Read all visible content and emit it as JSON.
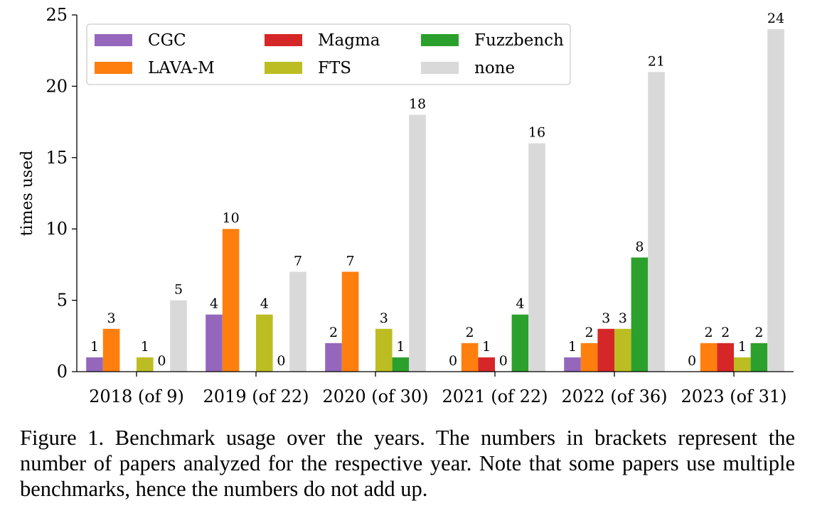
{
  "chart_data": {
    "type": "bar",
    "title": "",
    "xlabel": "",
    "ylabel": "times used",
    "ylim": [
      0,
      25
    ],
    "yticks": [
      0,
      5,
      10,
      15,
      20,
      25
    ],
    "grid": false,
    "legend_position": "top-left",
    "categories": [
      "2018 (of 9)",
      "2019 (of 22)",
      "2020 (of 30)",
      "2021 (of 22)",
      "2022 (of 36)",
      "2023 (of 31)"
    ],
    "series": [
      {
        "name": "CGC",
        "color": "#9467bd",
        "values": [
          1,
          4,
          2,
          0,
          1,
          0
        ]
      },
      {
        "name": "LAVA-M",
        "color": "#ff7f0e",
        "values": [
          3,
          10,
          7,
          2,
          2,
          2
        ]
      },
      {
        "name": "Magma",
        "color": "#d62728",
        "values": [
          null,
          null,
          null,
          1,
          3,
          2
        ]
      },
      {
        "name": "FTS",
        "color": "#bcbd22",
        "values": [
          1,
          4,
          3,
          0,
          3,
          1
        ]
      },
      {
        "name": "Fuzzbench",
        "color": "#2ca02c",
        "values": [
          0,
          0,
          1,
          4,
          8,
          2
        ]
      },
      {
        "name": "none",
        "color": "#d9d9d9",
        "values": [
          5,
          7,
          18,
          16,
          21,
          24
        ]
      }
    ]
  },
  "caption": "Figure 1. Benchmark usage over the years. The numbers in brackets represent the number of papers analyzed for the respective year. Note that some papers use multiple benchmarks, hence the numbers do not add up."
}
